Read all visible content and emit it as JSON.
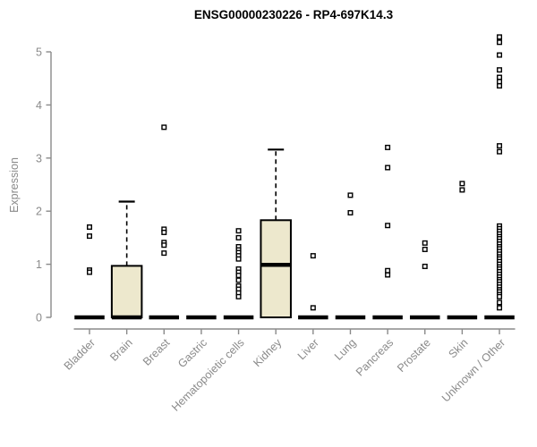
{
  "chart_data": {
    "type": "boxplot",
    "title": "ENSG00000230226 - RP4-697K14.3",
    "ylabel": "Expression",
    "xlabel": "",
    "ylim": [
      0,
      5
    ],
    "yticks": [
      0,
      1,
      2,
      3,
      4,
      5
    ],
    "grid": false,
    "legend": false,
    "categories": [
      "Bladder",
      "Brain",
      "Breast",
      "Gastric",
      "Hematopoietic cells",
      "Kidney",
      "Liver",
      "Lung",
      "Pancreas",
      "Prostate",
      "Skin",
      "Unknown / Other"
    ],
    "series": [
      {
        "name": "Bladder",
        "q1": 0,
        "median": 0,
        "q3": 0,
        "whisker_low": 0,
        "whisker_high": 0,
        "outliers": [
          1.7,
          1.53,
          0.89,
          0.85
        ]
      },
      {
        "name": "Brain",
        "q1": 0,
        "median": 0,
        "q3": 0.97,
        "whisker_low": 0,
        "whisker_high": 2.18,
        "outliers": []
      },
      {
        "name": "Breast",
        "q1": 0,
        "median": 0,
        "q3": 0,
        "whisker_low": 0,
        "whisker_high": 0,
        "outliers": [
          3.58,
          1.66,
          1.6,
          1.41,
          1.36,
          1.21
        ]
      },
      {
        "name": "Gastric",
        "q1": 0,
        "median": 0,
        "q3": 0,
        "whisker_low": 0,
        "whisker_high": 0,
        "outliers": []
      },
      {
        "name": "Hematopoietic cells",
        "q1": 0,
        "median": 0,
        "q3": 0,
        "whisker_low": 0,
        "whisker_high": 0,
        "outliers": [
          1.63,
          1.5,
          1.33,
          1.27,
          1.22,
          1.16,
          1.1,
          0.91,
          0.85,
          0.79,
          0.7,
          0.59,
          0.53,
          0.46,
          0.39
        ]
      },
      {
        "name": "Kidney",
        "q1": 0,
        "median": 0.99,
        "q3": 1.83,
        "whisker_low": 0,
        "whisker_high": 3.16,
        "outliers": []
      },
      {
        "name": "Liver",
        "q1": 0,
        "median": 0,
        "q3": 0,
        "whisker_low": 0,
        "whisker_high": 0,
        "outliers": [
          1.16,
          0.18
        ]
      },
      {
        "name": "Lung",
        "q1": 0,
        "median": 0,
        "q3": 0,
        "whisker_low": 0,
        "whisker_high": 0,
        "outliers": [
          2.3,
          1.97
        ]
      },
      {
        "name": "Pancreas",
        "q1": 0,
        "median": 0,
        "q3": 0,
        "whisker_low": 0,
        "whisker_high": 0,
        "outliers": [
          3.2,
          2.82,
          1.73,
          0.88,
          0.8
        ]
      },
      {
        "name": "Prostate",
        "q1": 0,
        "median": 0,
        "q3": 0,
        "whisker_low": 0,
        "whisker_high": 0,
        "outliers": [
          1.4,
          1.28,
          0.96
        ]
      },
      {
        "name": "Skin",
        "q1": 0,
        "median": 0,
        "q3": 0,
        "whisker_low": 0,
        "whisker_high": 0,
        "outliers": [
          2.52,
          2.4
        ]
      },
      {
        "name": "Unknown / Other",
        "q1": 0,
        "median": 0,
        "q3": 0,
        "whisker_low": 0,
        "whisker_high": 0,
        "outliers": [
          5.28,
          5.18,
          4.94,
          4.66,
          4.52,
          4.44,
          4.36,
          3.23,
          3.12,
          1.72,
          1.67,
          1.62,
          1.57,
          1.52,
          1.48,
          1.43,
          1.38,
          1.33,
          1.29,
          1.24,
          1.19,
          1.14,
          1.1,
          1.05,
          1.0,
          0.95,
          0.91,
          0.86,
          0.81,
          0.76,
          0.71,
          0.67,
          0.62,
          0.57,
          0.52,
          0.48,
          0.43,
          0.39,
          0.28,
          0.18
        ]
      }
    ],
    "colors": {
      "box_fill": "#ede8cd",
      "box_stroke": "#000000",
      "median": "#000000",
      "whisker": "#000000",
      "outlier_stroke": "#000000",
      "outlier_fill": "#ffffff",
      "axis": "#8a8a8a",
      "tick_text": "#8a8a8a",
      "title_text": "#000000",
      "background": "#ffffff"
    }
  }
}
